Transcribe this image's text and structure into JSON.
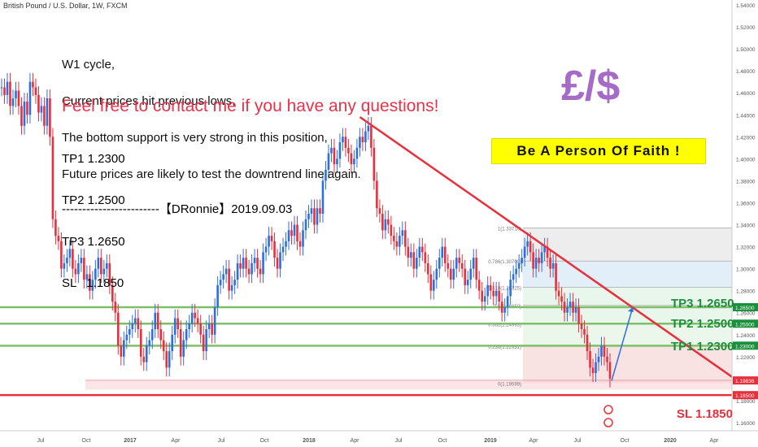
{
  "header": {
    "title": "British Pound / U.S. Dollar, 1W, FXCM"
  },
  "notes": {
    "lines": [
      "W1 cycle,",
      "Current prices hit previous lows,",
      "The bottom support is very strong in this position,",
      "Future prices are likely to test the downtrend line again."
    ],
    "contact": "Feel free to contact me if you have any questions!",
    "targets": [
      "TP1 1.2300",
      "TP2 1.2500",
      "TP3 1.2650",
      "SL   1.1850"
    ],
    "signature": "------------------------【DRonnie】2019.09.03"
  },
  "logo": {
    "text": "£/$"
  },
  "banner": {
    "text": "Be  A  Person  Of  Faith !"
  },
  "labels": {
    "tp3": "TP3 1.2650",
    "tp2": "TP2 1.2500",
    "tp1": "TP1 1.2300",
    "sl": "SL 1.1850"
  },
  "chart_data": {
    "type": "line",
    "title": "British Pound / U.S. Dollar, 1W, FXCM",
    "ylim": [
      1.155,
      1.545
    ],
    "y_ticks": [
      "1.54000",
      "1.52000",
      "1.50000",
      "1.48000",
      "1.46000",
      "1.44000",
      "1.42000",
      "1.40000",
      "1.38000",
      "1.36000",
      "1.34000",
      "1.32000",
      "1.30000",
      "1.28000",
      "1.26000",
      "1.24000",
      "1.22000",
      "1.20000",
      "1.18000",
      "1.16000"
    ],
    "x_ticks": [
      "Jul",
      "Oct",
      "2017",
      "Apr",
      "Jul",
      "Oct",
      "2018",
      "Apr",
      "Jul",
      "Oct",
      "2019",
      "Apr",
      "Jul",
      "Oct",
      "2020",
      "Apr"
    ],
    "price_tags": [
      {
        "label": "1.26500",
        "value": 1.265,
        "color": "#1a8f3c"
      },
      {
        "label": "1.25000",
        "value": 1.25,
        "color": "#1a8f3c"
      },
      {
        "label": "1.23000",
        "value": 1.23,
        "color": "#1a8f3c"
      },
      {
        "label": "1.19836",
        "value": 1.19836,
        "color": "#e8303c"
      },
      {
        "label": "1.18500",
        "value": 1.185,
        "color": "#e8303c"
      }
    ],
    "horizontal_lines": [
      {
        "name": "TP3",
        "value": 1.265,
        "color": "#7fbf6a"
      },
      {
        "name": "TP2",
        "value": 1.25,
        "color": "#7fbf6a"
      },
      {
        "name": "TP1",
        "value": 1.23,
        "color": "#7fbf6a"
      },
      {
        "name": "SL",
        "value": 1.185,
        "color": "#e8303c"
      }
    ],
    "fibonacci": [
      {
        "label": "1(1.33710)",
        "value": 1.3371
      },
      {
        "label": "0.786(1.30700)",
        "value": 1.307
      },
      {
        "label": "0.618(1.28325)",
        "value": 1.28325
      },
      {
        "label": "0.5(1.26659)",
        "value": 1.26659
      },
      {
        "label": "0.382(1.24993)",
        "value": 1.24993
      },
      {
        "label": "0.236(1.22931)",
        "value": 1.22931
      },
      {
        "label": "0(1.19599)",
        "value": 1.19599
      }
    ],
    "trendline": {
      "from": [
        0.4748,
        1.438
      ],
      "to": [
        0.967,
        1.201
      ]
    },
    "weekly_close": [
      1.465,
      1.458,
      1.47,
      1.448,
      1.455,
      1.462,
      1.448,
      1.43,
      1.452,
      1.44,
      1.47,
      1.465,
      1.458,
      1.442,
      1.448,
      1.43,
      1.455,
      1.42,
      1.345,
      1.33,
      1.325,
      1.3,
      1.305,
      1.31,
      1.318,
      1.3,
      1.295,
      1.305,
      1.31,
      1.29,
      1.295,
      1.28,
      1.29,
      1.3,
      1.31,
      1.295,
      1.3,
      1.305,
      1.285,
      1.27,
      1.26,
      1.23,
      1.22,
      1.235,
      1.24,
      1.245,
      1.25,
      1.255,
      1.245,
      1.22,
      1.215,
      1.23,
      1.235,
      1.245,
      1.26,
      1.245,
      1.235,
      1.225,
      1.21,
      1.225,
      1.24,
      1.255,
      1.245,
      1.22,
      1.235,
      1.245,
      1.25,
      1.26,
      1.255,
      1.25,
      1.24,
      1.225,
      1.245,
      1.25,
      1.24,
      1.265,
      1.285,
      1.29,
      1.295,
      1.3,
      1.28,
      1.285,
      1.29,
      1.305,
      1.3,
      1.31,
      1.3,
      1.295,
      1.305,
      1.31,
      1.3,
      1.295,
      1.315,
      1.32,
      1.33,
      1.325,
      1.31,
      1.3,
      1.315,
      1.32,
      1.325,
      1.335,
      1.33,
      1.34,
      1.325,
      1.32,
      1.335,
      1.345,
      1.35,
      1.355,
      1.34,
      1.355,
      1.35,
      1.38,
      1.39,
      1.405,
      1.41,
      1.395,
      1.4,
      1.415,
      1.42,
      1.41,
      1.405,
      1.395,
      1.4,
      1.41,
      1.42,
      1.415,
      1.425,
      1.43,
      1.41,
      1.38,
      1.355,
      1.35,
      1.335,
      1.345,
      1.34,
      1.33,
      1.325,
      1.32,
      1.33,
      1.335,
      1.32,
      1.31,
      1.315,
      1.3,
      1.31,
      1.32,
      1.315,
      1.305,
      1.295,
      1.28,
      1.29,
      1.3,
      1.31,
      1.32,
      1.305,
      1.3,
      1.29,
      1.3,
      1.31,
      1.305,
      1.3,
      1.285,
      1.29,
      1.3,
      1.31,
      1.29,
      1.28,
      1.27,
      1.275,
      1.285,
      1.28,
      1.275,
      1.28,
      1.27,
      1.26,
      1.265,
      1.275,
      1.29,
      1.295,
      1.3,
      1.305,
      1.31,
      1.32,
      1.325,
      1.315,
      1.3,
      1.31,
      1.305,
      1.315,
      1.32,
      1.31,
      1.3,
      1.305,
      1.28,
      1.275,
      1.27,
      1.26,
      1.265,
      1.27,
      1.26,
      1.265,
      1.25,
      1.245,
      1.24,
      1.225,
      1.21,
      1.205,
      1.215,
      1.22,
      1.23,
      1.22,
      1.215,
      1.2
    ]
  }
}
